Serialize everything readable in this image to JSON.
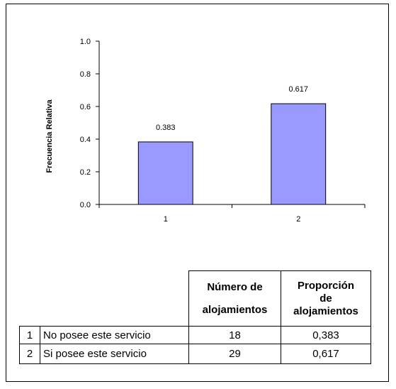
{
  "chart_data": {
    "type": "bar",
    "categories": [
      "1",
      "2"
    ],
    "values": [
      0.383,
      0.617
    ],
    "data_labels": [
      "0.383",
      "0.617"
    ],
    "title": "",
    "xlabel": "",
    "ylabel": "Frecuencia Relativa",
    "ylim": [
      0,
      1.0
    ],
    "yticks": [
      "0.0",
      "0.2",
      "0.4",
      "0.6",
      "0.8",
      "1.0"
    ],
    "grid": false,
    "bar_color": "#9999ff"
  },
  "table": {
    "headers": {
      "count_line1": "Número de",
      "count_line2": "alojamientos",
      "prop_line1": "Proporción",
      "prop_line2": "de",
      "prop_line3": "alojamientos"
    },
    "rows": [
      {
        "index": "1",
        "label": "No posee este servicio",
        "count": "18",
        "proportion": "0,383"
      },
      {
        "index": "2",
        "label": "Si posee este servicio",
        "count": "29",
        "proportion": "0,617"
      }
    ]
  }
}
